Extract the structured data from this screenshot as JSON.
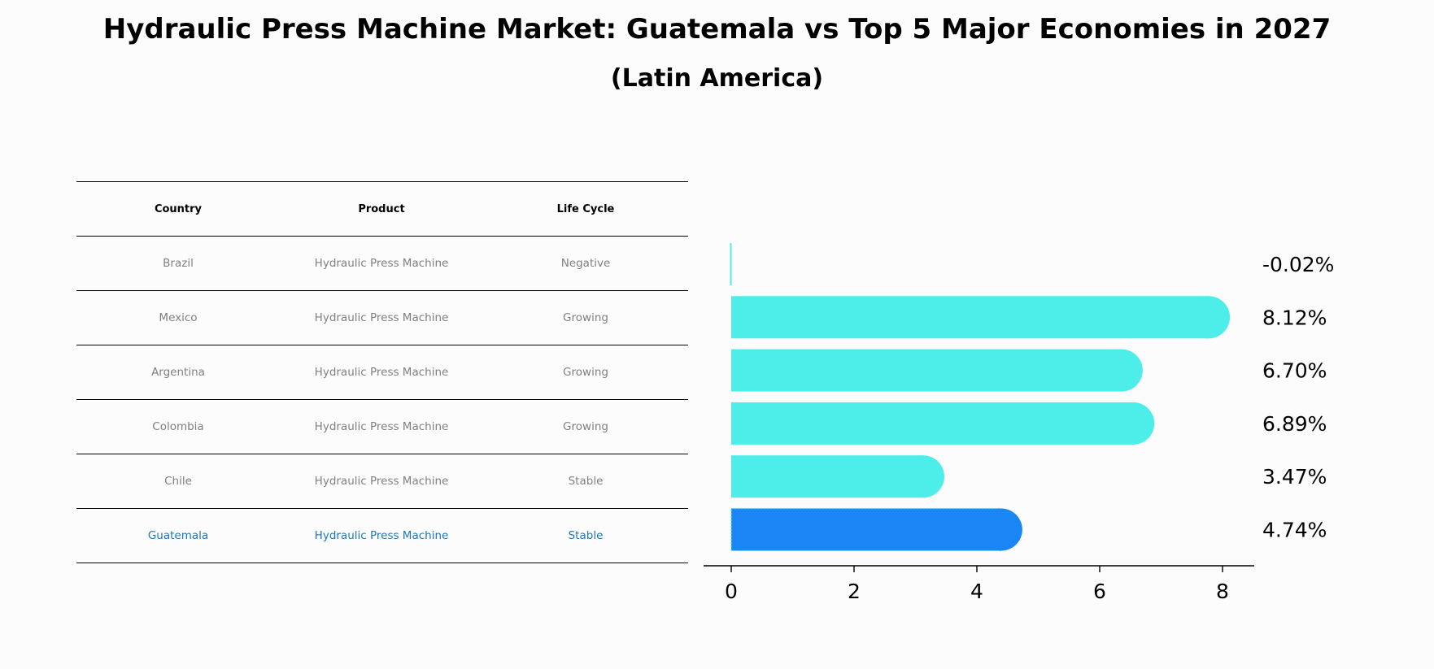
{
  "title": "Hydraulic Press Machine Market: Guatemala vs Top 5 Major Economies in 2027",
  "subtitle": "(Latin America)",
  "table": {
    "headers": [
      "Country",
      "Product",
      "Life Cycle"
    ],
    "rows": [
      {
        "country": "Brazil",
        "product": "Hydraulic Press Machine",
        "life_cycle": "Negative"
      },
      {
        "country": "Mexico",
        "product": "Hydraulic Press Machine",
        "life_cycle": "Growing"
      },
      {
        "country": "Argentina",
        "product": "Hydraulic Press Machine",
        "life_cycle": "Growing"
      },
      {
        "country": "Colombia",
        "product": "Hydraulic Press Machine",
        "life_cycle": "Growing"
      },
      {
        "country": "Chile",
        "product": "Hydraulic Press Machine",
        "life_cycle": "Stable"
      },
      {
        "country": "Guatemala",
        "product": "Hydraulic Press Machine",
        "life_cycle": "Stable"
      }
    ]
  },
  "colors": {
    "bar": "#4deeea",
    "highlight_bar": "#1a85f5",
    "highlight_text": "#1f77b4",
    "row_text": "#808080"
  },
  "chart_data": {
    "type": "bar",
    "orientation": "horizontal",
    "categories": [
      "Brazil",
      "Mexico",
      "Argentina",
      "Colombia",
      "Chile",
      "Guatemala"
    ],
    "values": [
      -0.02,
      8.12,
      6.7,
      6.89,
      3.47,
      4.74
    ],
    "labels": [
      "-0.02%",
      "8.12%",
      "6.70%",
      "6.89%",
      "3.47%",
      "4.74%"
    ],
    "highlight": "Guatemala",
    "xlim": [
      -0.45,
      8.5
    ],
    "xticks": [
      0,
      2,
      4,
      6,
      8
    ],
    "xlabel": "",
    "ylabel": "",
    "grid": false
  }
}
